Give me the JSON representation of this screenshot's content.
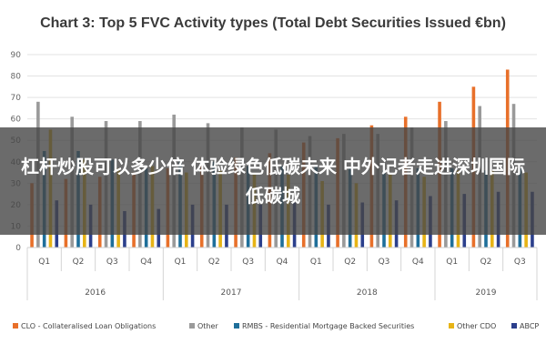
{
  "chart_data": {
    "type": "bar",
    "title": "Chart 3: Top 5 FVC Activity types (Total Debt Securities Issued €bn)",
    "xlabel": "",
    "ylabel": "",
    "ylim": [
      0,
      90
    ],
    "yticks": [
      0,
      10,
      20,
      30,
      40,
      50,
      60,
      70,
      80,
      90
    ],
    "grid": true,
    "legend_position": "bottom",
    "years": [
      {
        "label": "2016",
        "quarters": 4
      },
      {
        "label": "2017",
        "quarters": 4
      },
      {
        "label": "2018",
        "quarters": 4
      },
      {
        "label": "2019",
        "quarters": 3
      }
    ],
    "categories": [
      "Q1",
      "Q2",
      "Q3",
      "Q4",
      "Q1",
      "Q2",
      "Q3",
      "Q4",
      "Q1",
      "Q2",
      "Q3",
      "Q4",
      "Q1",
      "Q2",
      "Q3"
    ],
    "series": [
      {
        "name": "CLO - Collateralised Loan Obligations",
        "color": "#e8702a",
        "values": [
          30,
          32,
          33,
          35,
          37,
          40,
          42,
          44,
          49,
          51,
          57,
          61,
          68,
          75,
          83
        ]
      },
      {
        "name": "Other",
        "color": "#9a9a9a",
        "values": [
          68,
          61,
          59,
          59,
          62,
          58,
          56,
          55,
          52,
          53,
          53,
          56,
          59,
          66,
          67
        ]
      },
      {
        "name": "RMBS - Residential Mortgage Backed Securities",
        "color": "#1f6f9a",
        "values": [
          45,
          45,
          41,
          37,
          40,
          40,
          38,
          38,
          38,
          37,
          36,
          37,
          37,
          36,
          37
        ]
      },
      {
        "name": "Other CDO",
        "color": "#e7b416",
        "values": [
          55,
          41,
          37,
          38,
          35,
          36,
          34,
          34,
          31,
          30,
          34,
          33,
          36,
          36,
          35
        ]
      },
      {
        "name": "ABCP",
        "color": "#2b3f8c",
        "values": [
          22,
          20,
          17,
          18,
          20,
          20,
          20,
          21,
          20,
          21,
          22,
          24,
          25,
          26,
          26
        ]
      }
    ]
  },
  "overlay": {
    "caption": "杠杆炒股可以多少倍 体验绿色低碳未来 中外记者走进深圳国际低碳城"
  }
}
